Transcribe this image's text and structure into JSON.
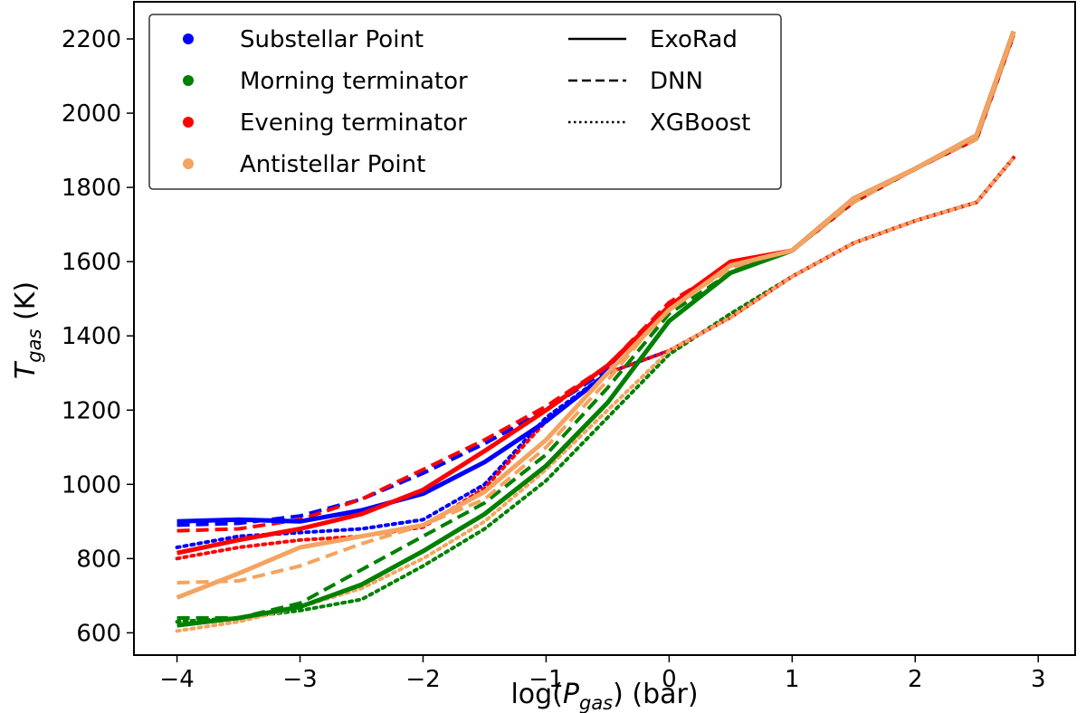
{
  "chart_data": {
    "type": "line",
    "xlabel_prefix": "log(",
    "xlabel_var": "P",
    "xlabel_sub": "gas",
    "xlabel_suffix": ") (bar)",
    "ylabel_var": "T",
    "ylabel_sub": "gas",
    "ylabel_suffix": " (K)",
    "xlim": [
      -4.35,
      3.3
    ],
    "ylim": [
      540,
      2300
    ],
    "x_ticks": [
      -4,
      -3,
      -2,
      -1,
      0,
      1,
      2,
      3
    ],
    "x_tick_labels": [
      "−4",
      "−3",
      "−2",
      "−1",
      "0",
      "1",
      "2",
      "3"
    ],
    "y_ticks": [
      600,
      800,
      1000,
      1200,
      1400,
      1600,
      1800,
      2000,
      2200
    ],
    "y_tick_labels": [
      "600",
      "800",
      "1000",
      "1200",
      "1400",
      "1600",
      "1800",
      "2000",
      "2200"
    ],
    "legend_position": "top-left",
    "legend_locations": [
      {
        "name": "Substellar Point",
        "color": "#0000ff"
      },
      {
        "name": "Morning terminator",
        "color": "#008000"
      },
      {
        "name": "Evening terminator",
        "color": "#ff0000"
      },
      {
        "name": "Antistellar Point",
        "color": "#f4a460"
      }
    ],
    "legend_models": [
      {
        "name": "ExoRad",
        "style": "solid"
      },
      {
        "name": "DNN",
        "style": "dashed"
      },
      {
        "name": "XGBoost",
        "style": "dotted"
      }
    ],
    "series": [
      {
        "name": "Substellar Point - XGBoost",
        "color": "#0000ff",
        "style": "dotted",
        "x": [
          -4.0,
          -3.5,
          -3.0,
          -2.5,
          -2.0,
          -1.5,
          -1.0,
          -0.5,
          0.0,
          0.5,
          1.0,
          1.5,
          2.0,
          2.5,
          2.8
        ],
        "y": [
          830,
          860,
          870,
          880,
          905,
          1000,
          1180,
          1300,
          1360,
          1450,
          1560,
          1650,
          1710,
          1760,
          1880
        ]
      },
      {
        "name": "Morning terminator - XGBoost",
        "color": "#008000",
        "style": "dotted",
        "x": [
          -4.0,
          -3.5,
          -3.0,
          -2.5,
          -2.0,
          -1.5,
          -1.0,
          -0.5,
          0.0,
          0.5,
          1.0,
          1.5,
          2.0,
          2.5,
          2.8
        ],
        "y": [
          630,
          640,
          660,
          690,
          780,
          880,
          1010,
          1180,
          1350,
          1460,
          1560,
          1650,
          1710,
          1760,
          1880
        ]
      },
      {
        "name": "Evening terminator - XGBoost",
        "color": "#ff0000",
        "style": "dotted",
        "x": [
          -4.0,
          -3.5,
          -3.0,
          -2.5,
          -2.0,
          -1.5,
          -1.0,
          -0.5,
          0.0,
          0.5,
          1.0,
          1.5,
          2.0,
          2.5,
          2.8
        ],
        "y": [
          800,
          830,
          850,
          860,
          885,
          990,
          1170,
          1300,
          1360,
          1450,
          1560,
          1650,
          1710,
          1760,
          1880
        ]
      },
      {
        "name": "Antistellar Point - XGBoost",
        "color": "#f4a460",
        "style": "dotted",
        "x": [
          -4.0,
          -3.5,
          -3.0,
          -2.5,
          -2.0,
          -1.5,
          -1.0,
          -0.5,
          0.0,
          0.5,
          1.0,
          1.5,
          2.0,
          2.5,
          2.8
        ],
        "y": [
          605,
          630,
          670,
          720,
          800,
          900,
          1040,
          1200,
          1360,
          1450,
          1560,
          1650,
          1710,
          1760,
          1880
        ]
      },
      {
        "name": "Substellar Point - DNN",
        "color": "#0000ff",
        "style": "dashed",
        "x": [
          -4.0,
          -3.5,
          -3.0,
          -2.5,
          -2.0,
          -1.5,
          -1.0,
          -0.5,
          0.0,
          0.5,
          1.0,
          1.5,
          2.0,
          2.5,
          2.8
        ],
        "y": [
          890,
          895,
          915,
          960,
          1030,
          1110,
          1200,
          1310,
          1490,
          1590,
          1630,
          1760,
          1850,
          1930,
          2210
        ]
      },
      {
        "name": "Morning terminator - DNN",
        "color": "#008000",
        "style": "dashed",
        "x": [
          -4.0,
          -3.5,
          -3.0,
          -2.5,
          -2.0,
          -1.5,
          -1.0,
          -0.5,
          0.0,
          0.5,
          1.0,
          1.5,
          2.0,
          2.5,
          2.8
        ],
        "y": [
          640,
          640,
          680,
          770,
          860,
          950,
          1080,
          1260,
          1460,
          1570,
          1630,
          1760,
          1850,
          1930,
          2210
        ]
      },
      {
        "name": "Evening terminator - DNN",
        "color": "#ff0000",
        "style": "dashed",
        "x": [
          -4.0,
          -3.5,
          -3.0,
          -2.5,
          -2.0,
          -1.5,
          -1.0,
          -0.5,
          0.0,
          0.5,
          1.0,
          1.5,
          2.0,
          2.5,
          2.8
        ],
        "y": [
          875,
          880,
          905,
          960,
          1040,
          1120,
          1210,
          1320,
          1490,
          1590,
          1630,
          1760,
          1850,
          1930,
          2210
        ]
      },
      {
        "name": "Antistellar Point - DNN",
        "color": "#f4a460",
        "style": "dashed",
        "x": [
          -4.0,
          -3.5,
          -3.0,
          -2.5,
          -2.0,
          -1.5,
          -1.0,
          -0.5,
          0.0,
          0.5,
          1.0,
          1.5,
          2.0,
          2.5,
          2.8
        ],
        "y": [
          735,
          740,
          780,
          840,
          890,
          960,
          1100,
          1280,
          1480,
          1580,
          1630,
          1760,
          1850,
          1930,
          2210
        ]
      },
      {
        "name": "Substellar Point - ExoRad",
        "color": "#0000ff",
        "style": "solid",
        "x": [
          -4.0,
          -3.5,
          -3.0,
          -2.5,
          -2.0,
          -1.5,
          -1.0,
          -0.5,
          0.0,
          0.5,
          1.0,
          1.5,
          2.0,
          2.5,
          2.8
        ],
        "y": [
          900,
          905,
          900,
          930,
          975,
          1060,
          1170,
          1300,
          1480,
          1590,
          1630,
          1770,
          1850,
          1940,
          2220
        ]
      },
      {
        "name": "Morning terminator - ExoRad",
        "color": "#008000",
        "style": "solid",
        "x": [
          -4.0,
          -3.5,
          -3.0,
          -2.5,
          -2.0,
          -1.5,
          -1.0,
          -0.5,
          0.0,
          0.5,
          1.0,
          1.5,
          2.0,
          2.5,
          2.8
        ],
        "y": [
          620,
          640,
          670,
          730,
          820,
          920,
          1050,
          1220,
          1440,
          1570,
          1630,
          1770,
          1850,
          1940,
          2220
        ]
      },
      {
        "name": "Evening terminator - ExoRad",
        "color": "#ff0000",
        "style": "solid",
        "x": [
          -4.0,
          -3.5,
          -3.0,
          -2.5,
          -2.0,
          -1.5,
          -1.0,
          -0.5,
          0.0,
          0.5,
          1.0,
          1.5,
          2.0,
          2.5,
          2.8
        ],
        "y": [
          815,
          850,
          880,
          920,
          985,
          1090,
          1200,
          1320,
          1480,
          1600,
          1630,
          1770,
          1850,
          1940,
          2220
        ]
      },
      {
        "name": "Antistellar Point - ExoRad",
        "color": "#f4a460",
        "style": "solid",
        "x": [
          -4.0,
          -3.5,
          -3.0,
          -2.5,
          -2.0,
          -1.5,
          -1.0,
          -0.5,
          0.0,
          0.5,
          1.0,
          1.5,
          2.0,
          2.5,
          2.8
        ],
        "y": [
          695,
          760,
          830,
          860,
          890,
          980,
          1120,
          1300,
          1470,
          1590,
          1630,
          1770,
          1850,
          1940,
          2220
        ]
      }
    ]
  }
}
